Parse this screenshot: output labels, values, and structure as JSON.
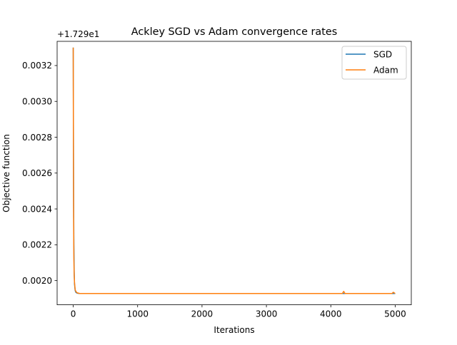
{
  "chart_data": {
    "type": "line",
    "title": "Ackley SGD vs Adam convergence rates",
    "xlabel": "Iterations",
    "ylabel": "Objective function",
    "offset_text": "+1.729e1",
    "xlim": [
      -250,
      5250
    ],
    "ylim": [
      0.001865,
      0.003335
    ],
    "x_ticks": [
      0,
      1000,
      2000,
      3000,
      4000,
      5000
    ],
    "x_tick_labels": [
      "0",
      "1000",
      "2000",
      "3000",
      "4000",
      "5000"
    ],
    "y_ticks": [
      0.002,
      0.0022,
      0.0024,
      0.0026,
      0.0028,
      0.003,
      0.0032
    ],
    "y_tick_labels": [
      "0.0020",
      "0.0022",
      "0.0024",
      "0.0026",
      "0.0028",
      "0.0030",
      "0.0032"
    ],
    "grid": false,
    "legend_position": "top-right",
    "series": [
      {
        "name": "SGD",
        "color": "#1f77b4",
        "x": [
          0,
          3,
          6,
          10,
          15,
          20,
          30,
          40,
          60,
          100,
          200,
          500,
          1000,
          2000,
          3000,
          4000,
          4180,
          4200,
          4220,
          4500,
          4950,
          4970,
          5000
        ],
        "y": [
          0.0033,
          0.00285,
          0.00245,
          0.0022,
          0.00205,
          0.00198,
          0.001945,
          0.001935,
          0.00193,
          0.001928,
          0.001928,
          0.001928,
          0.001928,
          0.001928,
          0.001928,
          0.001928,
          0.001928,
          0.001928,
          0.001928,
          0.001928,
          0.001928,
          0.001928,
          0.001928
        ]
      },
      {
        "name": "Adam",
        "color": "#ff7f0e",
        "x": [
          0,
          3,
          6,
          10,
          15,
          20,
          30,
          40,
          60,
          100,
          200,
          500,
          1000,
          2000,
          3000,
          4000,
          4180,
          4200,
          4220,
          4500,
          4950,
          4970,
          5000
        ],
        "y": [
          0.0033,
          0.00275,
          0.00235,
          0.00212,
          0.00203,
          0.00199,
          0.00195,
          0.00194,
          0.001932,
          0.001928,
          0.001928,
          0.001928,
          0.001928,
          0.001928,
          0.001928,
          0.001928,
          0.001928,
          0.00194,
          0.001928,
          0.001928,
          0.001928,
          0.001935,
          0.001928
        ]
      }
    ]
  }
}
